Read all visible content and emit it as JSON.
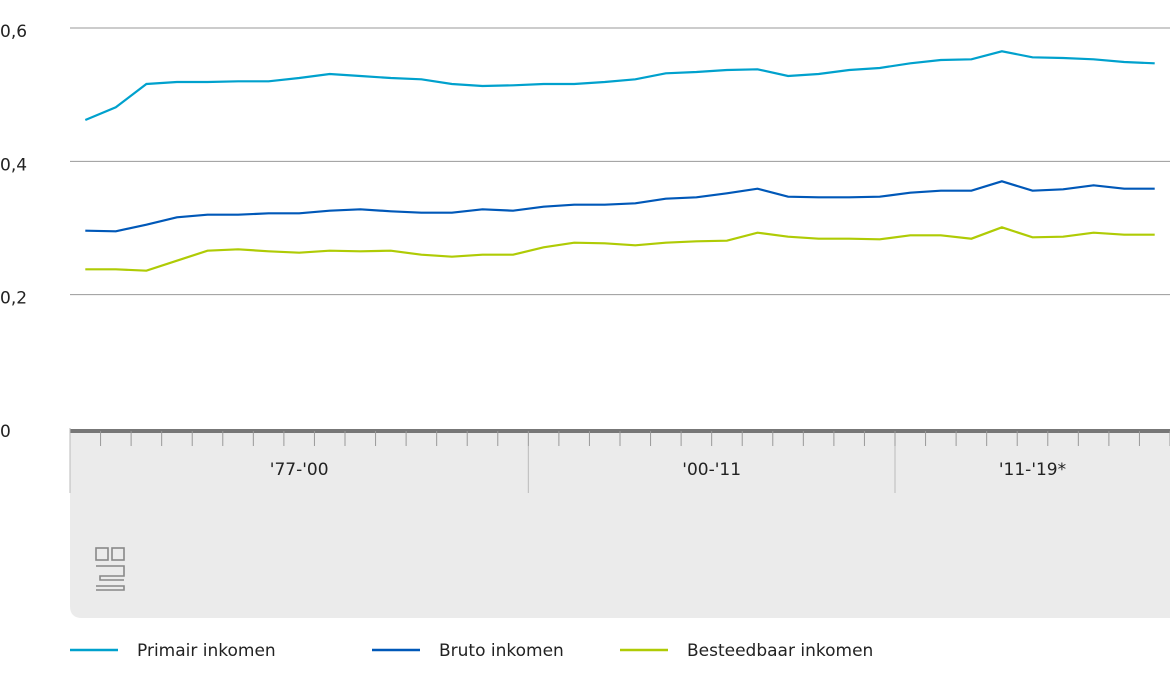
{
  "chart_data": {
    "type": "line",
    "categories": [
      null,
      null,
      null,
      null,
      null,
      null,
      null,
      null,
      null,
      null,
      null,
      null,
      null,
      null,
      null,
      null,
      null,
      null,
      null,
      null,
      null,
      null,
      null,
      null,
      null,
      null,
      null,
      null,
      null,
      null,
      null,
      null,
      null,
      null,
      null,
      null
    ],
    "groups": [
      {
        "label": "'77-'00",
        "span": 15
      },
      {
        "label": "'00-'11",
        "span": 12
      },
      {
        "label": "'11-'19*",
        "span": 9
      }
    ],
    "series": [
      {
        "name": "Primair inkomen",
        "color": "#00a1cd",
        "values": [
          0.462,
          0.481,
          0.516,
          0.519,
          0.519,
          0.52,
          0.52,
          0.525,
          0.531,
          0.528,
          0.525,
          0.523,
          0.516,
          0.513,
          0.514,
          0.516,
          0.516,
          0.519,
          0.523,
          0.532,
          0.534,
          0.537,
          0.538,
          0.528,
          0.531,
          0.537,
          0.54,
          0.547,
          0.552,
          0.553,
          0.565,
          0.556,
          0.555,
          0.553,
          0.549,
          0.547
        ]
      },
      {
        "name": "Bruto inkomen",
        "color": "#0058b8",
        "values": [
          0.296,
          0.295,
          0.305,
          0.316,
          0.32,
          0.32,
          0.322,
          0.322,
          0.326,
          0.328,
          0.325,
          0.323,
          0.323,
          0.328,
          0.326,
          0.332,
          0.335,
          0.335,
          0.337,
          0.344,
          0.346,
          0.352,
          0.359,
          0.347,
          0.346,
          0.346,
          0.347,
          0.353,
          0.356,
          0.356,
          0.37,
          0.356,
          0.358,
          0.364,
          0.359,
          0.359
        ]
      },
      {
        "name": "Besteedbaar inkomen",
        "color": "#afcb05",
        "values": [
          0.238,
          0.238,
          0.236,
          0.251,
          0.266,
          0.268,
          0.265,
          0.263,
          0.266,
          0.265,
          0.266,
          0.26,
          0.257,
          0.26,
          0.26,
          0.271,
          0.278,
          0.277,
          0.274,
          0.278,
          0.28,
          0.281,
          0.293,
          0.287,
          0.284,
          0.284,
          0.283,
          0.289,
          0.289,
          0.284,
          0.301,
          0.286,
          0.287,
          0.293,
          0.29,
          0.29
        ]
      }
    ],
    "ylim": [
      0,
      0.6
    ],
    "yticks": [
      0,
      {
        "value": 0.2,
        "label": "0,2"
      },
      {
        "value": 0.4,
        "label": "0,4"
      },
      {
        "value": 0.6,
        "label": "0,6"
      }
    ],
    "grid": true
  }
}
